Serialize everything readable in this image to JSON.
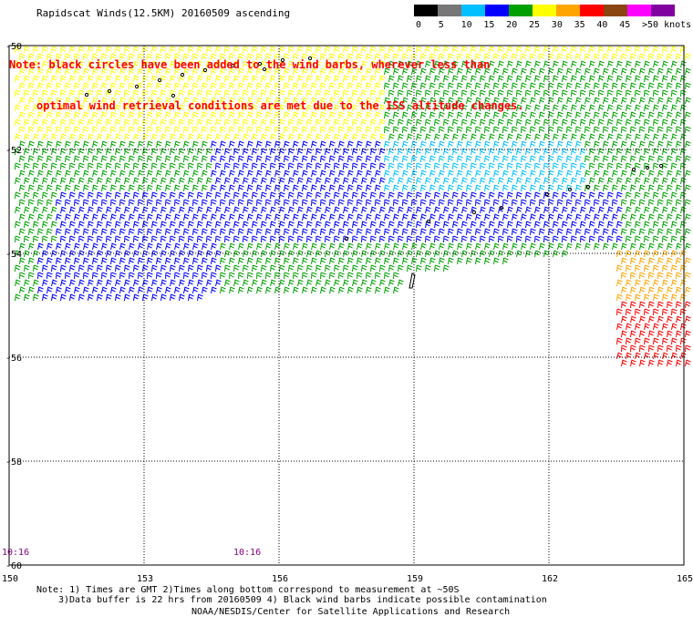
{
  "title": "Rapidscat Winds(12.5KM) 20160509 ascending",
  "note": {
    "line1": "Note: black circles have been added to the wind barbs, wherever less than",
    "line2": "optimal wind retrieval conditions are met due to the ISS altitude changes."
  },
  "scale": {
    "labels": [
      "0",
      "5",
      "10",
      "15",
      "20",
      "25",
      "30",
      "35",
      "40",
      "45",
      ">50 knots"
    ],
    "colors": [
      "#000000",
      "#777777",
      "#00bfff",
      "#0000ff",
      "#00a000",
      "#ffff00",
      "#ffa500",
      "#ff0000",
      "#8b4513",
      "#ff00ff",
      "#8000a0"
    ]
  },
  "axes": {
    "lat_labels": [
      "-50",
      "-52",
      "-54",
      "-56",
      "-58",
      "-60"
    ],
    "lon_labels": [
      "150",
      "153",
      "156",
      "159",
      "162",
      "165"
    ]
  },
  "times": [
    "10:16",
    "10:16"
  ],
  "footer": {
    "line1": "Note: 1) Times are GMT 2)Times along bottom correspond to measurement at ~50S",
    "line2": "3)Data buffer is 22 hrs from 20160509 4) Black wind barbs indicate possible contamination",
    "line3": "NOAA/NESDIS/Center for Satellite Applications and Research"
  }
}
